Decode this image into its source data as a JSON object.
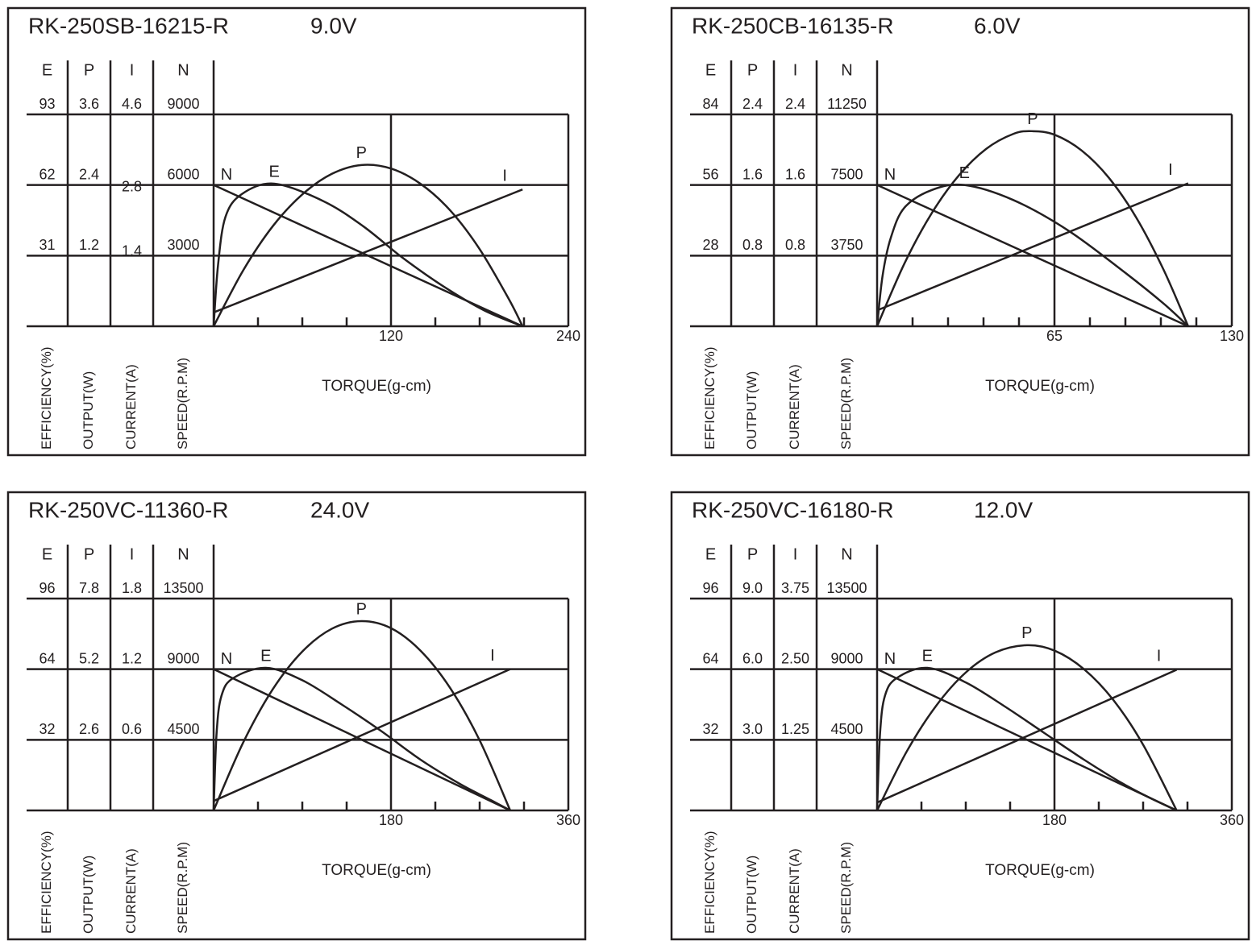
{
  "chart_data": [
    {
      "type": "line",
      "title": "RK-250SB-16215-R",
      "voltage": "9.0V",
      "xlabel": "TORQUE(g-cm)",
      "xlim": [
        0,
        240
      ],
      "xticks": [
        120,
        240
      ],
      "xminor": [
        30,
        60,
        90,
        150,
        180,
        210
      ],
      "yaxes": [
        {
          "letter": "E",
          "label": "EFFICIENCY(%)",
          "ylim": [
            0,
            93
          ],
          "yticks": [
            31,
            62,
            93
          ]
        },
        {
          "letter": "P",
          "label": "OUTPUT(W)",
          "ylim": [
            0,
            3.6
          ],
          "yticks": [
            1.2,
            2.4,
            3.6
          ]
        },
        {
          "letter": "I",
          "label": "CURRENT(A)",
          "ylim": [
            0,
            4.6
          ],
          "yticks": [
            1.4,
            2.8,
            4.6
          ]
        },
        {
          "letter": "N",
          "label": "SPEED(R.P.M)",
          "ylim": [
            0,
            9000
          ],
          "yticks": [
            3000,
            6000,
            9000
          ]
        }
      ],
      "series": [
        {
          "name": "N",
          "axis": 3,
          "color": "#231f20",
          "x": [
            0,
            209
          ],
          "values": [
            6000,
            0
          ]
        },
        {
          "name": "E",
          "axis": 0,
          "color": "#231f20",
          "x": [
            0,
            3,
            8,
            19,
            41,
            74,
            101,
            128,
            155,
            183,
            209
          ],
          "values": [
            0,
            27,
            48,
            58,
            62.6,
            55,
            44,
            30,
            17.7,
            7,
            0
          ]
        },
        {
          "name": "P",
          "axis": 1,
          "color": "#231f20",
          "x": [
            0,
            20,
            40,
            60,
            80,
            100,
            120,
            140,
            160,
            180,
            200,
            209
          ],
          "values": [
            0,
            0.95,
            1.7,
            2.24,
            2.59,
            2.74,
            2.68,
            2.42,
            1.97,
            1.31,
            0.45,
            0
          ]
        },
        {
          "name": "I",
          "axis": 2,
          "color": "#231f20",
          "x": [
            0,
            209
          ],
          "values": [
            0.3,
            2.97
          ]
        }
      ]
    },
    {
      "type": "line",
      "title": "RK-250CB-16135-R",
      "voltage": "6.0V",
      "xlabel": "TORQUE(g-cm)",
      "xlim": [
        0,
        130
      ],
      "xticks": [
        65,
        130
      ],
      "xminor": [
        13,
        26,
        39,
        52,
        78,
        91,
        104,
        117
      ],
      "yaxes": [
        {
          "letter": "E",
          "label": "EFFICIENCY(%)",
          "ylim": [
            0,
            84
          ],
          "yticks": [
            28,
            56,
            84
          ]
        },
        {
          "letter": "P",
          "label": "OUTPUT(W)",
          "ylim": [
            0,
            2.4
          ],
          "yticks": [
            0.8,
            1.6,
            2.4
          ]
        },
        {
          "letter": "I",
          "label": "CURRENT(A)",
          "ylim": [
            0,
            2.4
          ],
          "yticks": [
            0.8,
            1.6,
            2.4
          ]
        },
        {
          "letter": "N",
          "label": "SPEED(R.P.M)",
          "ylim": [
            0,
            11250
          ],
          "yticks": [
            3750,
            7500,
            11250
          ]
        }
      ],
      "series": [
        {
          "name": "N",
          "axis": 3,
          "color": "#231f20",
          "x": [
            0,
            114
          ],
          "values": [
            7500,
            0
          ]
        },
        {
          "name": "E",
          "axis": 0,
          "color": "#231f20",
          "x": [
            0,
            2,
            5,
            10,
            20,
            32,
            50,
            70,
            90,
            105,
            114
          ],
          "values": [
            0,
            20,
            35,
            47,
            54,
            56,
            50,
            38,
            22,
            9,
            0
          ]
        },
        {
          "name": "P",
          "axis": 1,
          "color": "#231f20",
          "x": [
            0,
            10,
            20,
            30,
            40,
            50,
            57,
            65,
            75,
            85,
            95,
            105,
            114
          ],
          "values": [
            0,
            0.71,
            1.28,
            1.71,
            2.01,
            2.18,
            2.21,
            2.17,
            1.99,
            1.68,
            1.23,
            0.64,
            0
          ]
        },
        {
          "name": "I",
          "axis": 2,
          "color": "#231f20",
          "x": [
            0,
            114
          ],
          "values": [
            0.18,
            1.62
          ]
        }
      ]
    },
    {
      "type": "line",
      "title": "RK-250VC-11360-R",
      "voltage": "24.0V",
      "xlabel": "TORQUE(g-cm)",
      "xlim": [
        0,
        360
      ],
      "xticks": [
        180,
        360
      ],
      "xminor": [
        45,
        90,
        135,
        225,
        270,
        315
      ],
      "yaxes": [
        {
          "letter": "E",
          "label": "EFFICIENCY(%)",
          "ylim": [
            0,
            96
          ],
          "yticks": [
            32,
            64,
            96
          ]
        },
        {
          "letter": "P",
          "label": "OUTPUT(W)",
          "ylim": [
            0,
            7.8
          ],
          "yticks": [
            2.6,
            5.2,
            7.8
          ]
        },
        {
          "letter": "I",
          "label": "CURRENT(A)",
          "ylim": [
            0,
            1.8
          ],
          "yticks": [
            0.6,
            1.2,
            1.8
          ]
        },
        {
          "letter": "N",
          "label": "SPEED(R.P.M)",
          "ylim": [
            0,
            13500
          ],
          "yticks": [
            4500,
            9000,
            13500
          ]
        }
      ],
      "series": [
        {
          "name": "N",
          "axis": 3,
          "color": "#231f20",
          "x": [
            0,
            301
          ],
          "values": [
            9000,
            0
          ]
        },
        {
          "name": "E",
          "axis": 0,
          "color": "#231f20",
          "x": [
            0,
            3,
            8,
            20,
            53,
            90,
            130,
            170,
            210,
            250,
            280,
            301
          ],
          "values": [
            0,
            35,
            52,
            60,
            64.6,
            59,
            48,
            36,
            23,
            12,
            5,
            0
          ]
        },
        {
          "name": "P",
          "axis": 1,
          "color": "#231f20",
          "x": [
            0,
            30,
            60,
            90,
            120,
            150,
            180,
            210,
            240,
            270,
            301
          ],
          "values": [
            0,
            2.5,
            4.46,
            5.85,
            6.69,
            6.97,
            6.71,
            5.88,
            4.51,
            2.58,
            0
          ]
        },
        {
          "name": "I",
          "axis": 2,
          "color": "#231f20",
          "x": [
            0,
            301
          ],
          "values": [
            0.08,
            1.2
          ]
        }
      ]
    },
    {
      "type": "line",
      "title": "RK-250VC-16180-R",
      "voltage": "12.0V",
      "xlabel": "TORQUE(g-cm)",
      "xlim": [
        0,
        360
      ],
      "xticks": [
        180,
        360
      ],
      "xminor": [
        45,
        90,
        135,
        225,
        270,
        315
      ],
      "yaxes": [
        {
          "letter": "E",
          "label": "EFFICIENCY(%)",
          "ylim": [
            0,
            96
          ],
          "yticks": [
            32,
            64,
            96
          ]
        },
        {
          "letter": "P",
          "label": "OUTPUT(W)",
          "ylim": [
            0,
            9
          ],
          "yticks": [
            {
              "value": 3,
              "label": "3.0"
            },
            {
              "value": 6,
              "label": "6.0"
            },
            {
              "value": 9,
              "label": "9.0"
            }
          ]
        },
        {
          "letter": "I",
          "label": "CURRENT(A)",
          "ylim": [
            0,
            3.75
          ],
          "yticks": [
            1.25,
            {
              "value": 2.5,
              "label": "2.50"
            },
            3.75
          ]
        },
        {
          "letter": "N",
          "label": "SPEED(R.P.M)",
          "ylim": [
            0,
            13500
          ],
          "yticks": [
            4500,
            9000,
            13500
          ]
        }
      ],
      "series": [
        {
          "name": "N",
          "axis": 3,
          "color": "#231f20",
          "x": [
            0,
            304
          ],
          "values": [
            9000,
            0
          ]
        },
        {
          "name": "E",
          "axis": 0,
          "color": "#231f20",
          "x": [
            0,
            3,
            8,
            20,
            51,
            90,
            130,
            170,
            210,
            250,
            280,
            304
          ],
          "values": [
            0,
            35,
            52,
            60,
            64.6,
            58,
            47,
            35,
            23,
            12,
            5,
            0
          ]
        },
        {
          "name": "P",
          "axis": 1,
          "color": "#231f20",
          "x": [
            0,
            30,
            60,
            90,
            120,
            152,
            180,
            210,
            240,
            270,
            304
          ],
          "values": [
            0,
            2.5,
            4.45,
            5.86,
            6.71,
            7.02,
            6.79,
            6,
            4.68,
            2.79,
            0
          ]
        },
        {
          "name": "I",
          "axis": 2,
          "color": "#231f20",
          "x": [
            0,
            304
          ],
          "values": [
            0.14,
            2.49
          ]
        }
      ]
    }
  ]
}
